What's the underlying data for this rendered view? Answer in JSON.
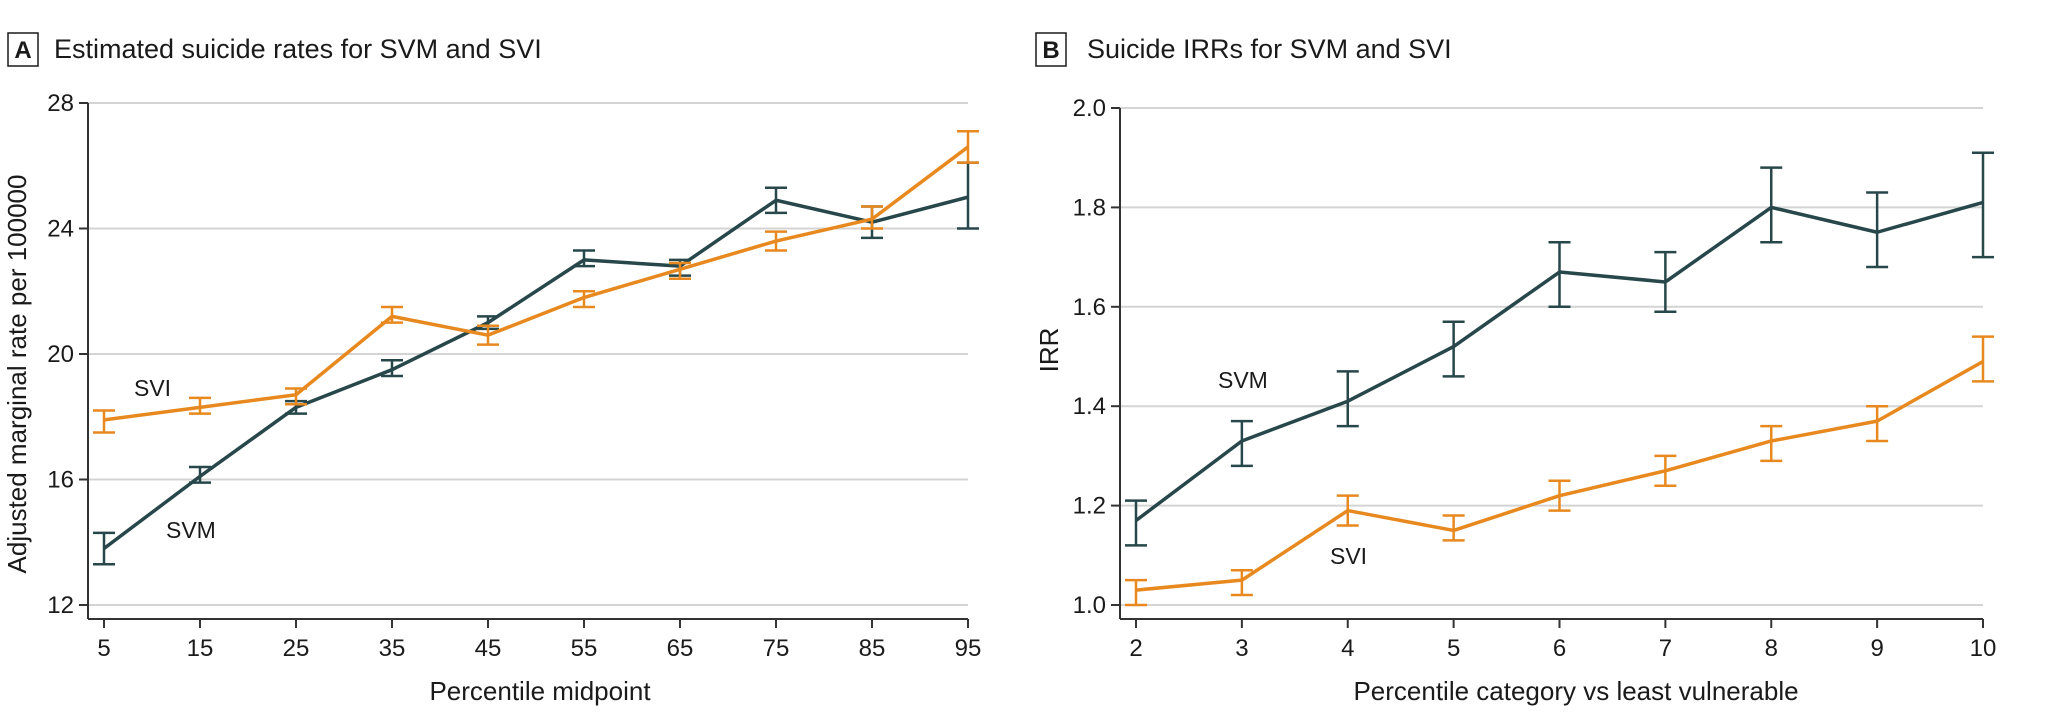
{
  "figure": {
    "panels": [
      {
        "letter": "A",
        "title": "Estimated suicide rates for SVM and SVI"
      },
      {
        "letter": "B",
        "title": "Suicide IRRs for SVM and SVI"
      }
    ]
  },
  "colors": {
    "SVM": "#27474a",
    "SVI": "#e8891f",
    "grid": "#d4d4d4",
    "axis": "#333333"
  },
  "chart_data": [
    {
      "type": "line",
      "title": "Estimated suicide rates for SVM and SVI",
      "xlabel": "Percentile midpoint",
      "ylabel": "Adjusted marginal rate per 100000",
      "x": [
        5,
        15,
        25,
        35,
        45,
        55,
        65,
        75,
        85,
        95
      ],
      "xticks": [
        5,
        15,
        25,
        35,
        45,
        55,
        65,
        75,
        85,
        95
      ],
      "xlim": [
        5,
        95
      ],
      "ylim": [
        12,
        28
      ],
      "yticks": [
        12,
        16,
        20,
        24,
        28
      ],
      "grid": true,
      "series": [
        {
          "name": "SVM",
          "label": "SVM",
          "values": [
            13.8,
            16.1,
            18.3,
            19.5,
            21.0,
            23.0,
            22.8,
            24.9,
            24.2,
            25.0
          ],
          "ci_low": [
            13.3,
            15.9,
            18.1,
            19.3,
            20.8,
            22.8,
            22.5,
            24.5,
            23.7,
            24.0
          ],
          "ci_high": [
            14.3,
            16.4,
            18.5,
            19.8,
            21.2,
            23.3,
            23.0,
            25.3,
            24.7,
            26.1
          ]
        },
        {
          "name": "SVI",
          "label": "SVI",
          "values": [
            17.9,
            18.3,
            18.7,
            21.2,
            20.6,
            21.8,
            22.7,
            23.6,
            24.3,
            26.6
          ],
          "ci_low": [
            17.5,
            18.1,
            18.4,
            21.0,
            20.3,
            21.5,
            22.4,
            23.3,
            24.0,
            26.1
          ],
          "ci_high": [
            18.2,
            18.6,
            18.9,
            21.5,
            20.9,
            22.0,
            22.9,
            23.9,
            24.7,
            27.1
          ]
        }
      ]
    },
    {
      "type": "line",
      "title": "Suicide IRRs for SVM and SVI",
      "xlabel": "Percentile category vs least vulnerable",
      "ylabel": "IRR",
      "x": [
        2,
        3,
        4,
        5,
        6,
        7,
        8,
        9,
        10
      ],
      "xticks": [
        2,
        3,
        4,
        5,
        6,
        7,
        8,
        9,
        10
      ],
      "xlim": [
        2,
        10
      ],
      "ylim": [
        1.0,
        2.0
      ],
      "yticks": [
        "1.0",
        "1.2",
        "1.4",
        "1.6",
        "1.8",
        "2.0"
      ],
      "grid": true,
      "series": [
        {
          "name": "SVM",
          "label": "SVM",
          "values": [
            1.17,
            1.33,
            1.41,
            1.52,
            1.67,
            1.65,
            1.8,
            1.75,
            1.81
          ],
          "ci_low": [
            1.12,
            1.28,
            1.36,
            1.46,
            1.6,
            1.59,
            1.73,
            1.68,
            1.7
          ],
          "ci_high": [
            1.21,
            1.37,
            1.47,
            1.57,
            1.73,
            1.71,
            1.88,
            1.83,
            1.91
          ]
        },
        {
          "name": "SVI",
          "label": "SVI",
          "values": [
            1.03,
            1.05,
            1.19,
            1.15,
            1.22,
            1.27,
            1.33,
            1.37,
            1.49
          ],
          "ci_low": [
            1.0,
            1.02,
            1.16,
            1.13,
            1.19,
            1.24,
            1.29,
            1.33,
            1.45
          ],
          "ci_high": [
            1.05,
            1.07,
            1.22,
            1.18,
            1.25,
            1.3,
            1.36,
            1.4,
            1.54
          ]
        }
      ]
    }
  ]
}
